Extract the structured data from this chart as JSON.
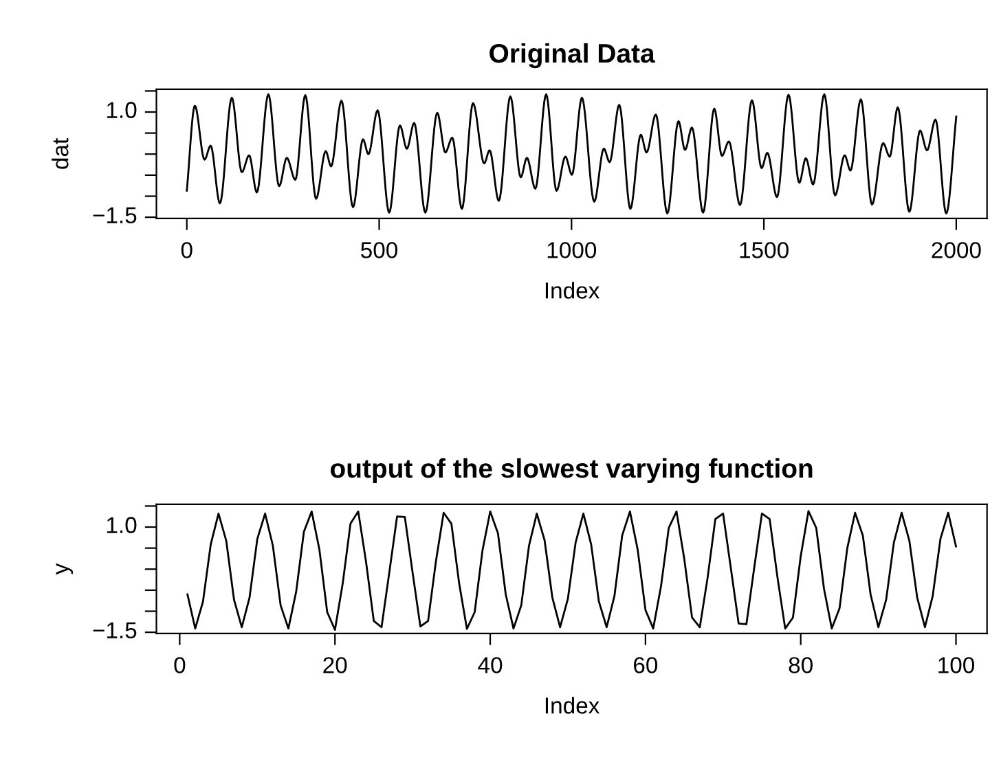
{
  "chart_data": [
    {
      "type": "line",
      "title": "Original Data",
      "xlabel": "Index",
      "ylabel": "dat",
      "xlim": [
        -79,
        2080
      ],
      "ylim": [
        -1.53,
        1.54
      ],
      "xticks": [
        0,
        500,
        1000,
        1500,
        2000
      ],
      "yticks": [
        {
          "value": -1.5,
          "label": "−1.5"
        },
        {
          "value": -1.0,
          "label": null
        },
        {
          "value": -0.5,
          "label": null
        },
        {
          "value": 0,
          "label": null
        },
        {
          "value": 0.5,
          "label": null
        },
        {
          "value": 1.0,
          "label": "1.0"
        },
        {
          "value": 1.5,
          "label": null
        }
      ],
      "grid": false,
      "series": [
        {
          "color": "#000000",
          "x": [
            0,
            21,
            46,
            62,
            86,
            117,
            143,
            162,
            182,
            212,
            240,
            260,
            282,
            308,
            336,
            361,
            375,
            402,
            432,
            458,
            472,
            496,
            526,
            554,
            572,
            591,
            620,
            651,
            672,
            690,
            715,
            744,
            773,
            787,
            811,
            841,
            868,
            884,
            906,
            934,
            961,
            984,
            1001,
            1027,
            1059,
            1084,
            1099,
            1124,
            1153,
            1180,
            1195,
            1219,
            1249,
            1278,
            1295,
            1313,
            1342,
            1371,
            1391,
            1409,
            1438,
            1469,
            1494,
            1509,
            1534,
            1564,
            1592,
            1609,
            1628,
            1657,
            1685,
            1710,
            1725,
            1752,
            1781,
            1810,
            1827,
            1848,
            1878,
            1906,
            1924,
            1946,
            1974,
            2000
          ],
          "values": [
            -0.87,
            1.15,
            -0.13,
            0.2,
            -1.17,
            1.34,
            -0.43,
            -0.03,
            -0.91,
            1.42,
            -0.76,
            -0.09,
            -0.61,
            1.4,
            -1.06,
            0.07,
            -0.29,
            1.27,
            -1.26,
            0.35,
            0.0,
            1.04,
            -1.39,
            0.68,
            0.13,
            0.74,
            -1.39,
            0.98,
            0.04,
            0.39,
            -1.3,
            1.21,
            -0.22,
            0.09,
            -1.11,
            1.37,
            -0.55,
            -0.09,
            -0.82,
            1.42,
            -0.87,
            -0.06,
            -0.49,
            1.34,
            -1.13,
            0.13,
            -0.19,
            1.17,
            -1.3,
            0.46,
            0.04,
            0.94,
            -1.41,
            0.78,
            0.1,
            0.63,
            -1.39,
            1.08,
            -0.04,
            0.3,
            -1.21,
            1.28,
            -0.33,
            0.03,
            -1.02,
            1.41,
            -0.68,
            -0.1,
            -0.72,
            1.42,
            -0.98,
            -0.03,
            -0.39,
            1.3,
            -1.2,
            0.26,
            -0.06,
            1.11,
            -1.37,
            0.56,
            0.09,
            0.82,
            -1.41,
            0.89
          ]
        }
      ]
    },
    {
      "type": "line",
      "title": "output of the slowest varying function",
      "xlabel": "Index",
      "ylabel": "y",
      "xlim": [
        -3,
        104
      ],
      "ylim": [
        -1.53,
        1.54
      ],
      "xticks": [
        0,
        20,
        40,
        60,
        80,
        100
      ],
      "yticks": [
        {
          "value": -1.5,
          "label": "−1.5"
        },
        {
          "value": -1.0,
          "label": null
        },
        {
          "value": -0.5,
          "label": null
        },
        {
          "value": 0,
          "label": null
        },
        {
          "value": 0.5,
          "label": null
        },
        {
          "value": 1.0,
          "label": "1.0"
        },
        {
          "value": 1.5,
          "label": null
        }
      ],
      "grid": false,
      "series": [
        {
          "color": "#000000",
          "x": [
            1,
            2,
            3,
            4,
            5,
            6,
            7,
            8,
            9,
            10,
            11,
            12,
            13,
            14,
            15,
            16,
            17,
            18,
            19,
            20,
            21,
            22,
            23,
            24,
            25,
            26,
            27,
            28,
            29,
            30,
            31,
            32,
            33,
            34,
            35,
            36,
            37,
            38,
            39,
            40,
            41,
            42,
            43,
            44,
            45,
            46,
            47,
            48,
            49,
            50,
            51,
            52,
            53,
            54,
            55,
            56,
            57,
            58,
            59,
            60,
            61,
            62,
            63,
            64,
            65,
            66,
            67,
            68,
            69,
            70,
            71,
            72,
            73,
            74,
            75,
            76,
            77,
            78,
            79,
            80,
            81,
            82,
            83,
            84,
            85,
            86,
            87,
            88,
            89,
            90,
            91,
            92,
            93,
            94,
            95,
            96,
            97,
            98,
            99,
            100
          ],
          "values": [
            -0.6,
            -1.41,
            -0.77,
            0.59,
            1.32,
            0.67,
            -0.73,
            -1.38,
            -0.67,
            0.72,
            1.32,
            0.56,
            -0.86,
            -1.41,
            -0.54,
            0.89,
            1.37,
            0.46,
            -1.02,
            -1.44,
            -0.34,
            1.08,
            1.37,
            0.18,
            -1.23,
            -1.38,
            -0.08,
            1.25,
            1.24,
            -0.08,
            -1.36,
            -1.23,
            0.18,
            1.34,
            1.08,
            -0.34,
            -1.42,
            -1.02,
            0.44,
            1.37,
            0.85,
            -0.6,
            -1.41,
            -0.86,
            0.56,
            1.32,
            0.69,
            -0.67,
            -1.38,
            -0.71,
            0.63,
            1.32,
            0.59,
            -0.77,
            -1.38,
            -0.64,
            0.8,
            1.37,
            0.46,
            -0.97,
            -1.41,
            -0.41,
            0.98,
            1.37,
            0.24,
            -1.15,
            -1.38,
            -0.21,
            1.19,
            1.32,
            0.02,
            -1.29,
            -1.31,
            0.02,
            1.32,
            1.19,
            -0.19,
            -1.41,
            -1.15,
            0.31,
            1.38,
            0.98,
            -0.47,
            -1.41,
            -0.93,
            0.5,
            1.34,
            0.8,
            -0.6,
            -1.38,
            -0.73,
            0.63,
            1.34,
            0.67,
            -0.67,
            -1.38,
            -0.64,
            0.72,
            1.34,
            0.54
          ]
        }
      ]
    }
  ]
}
